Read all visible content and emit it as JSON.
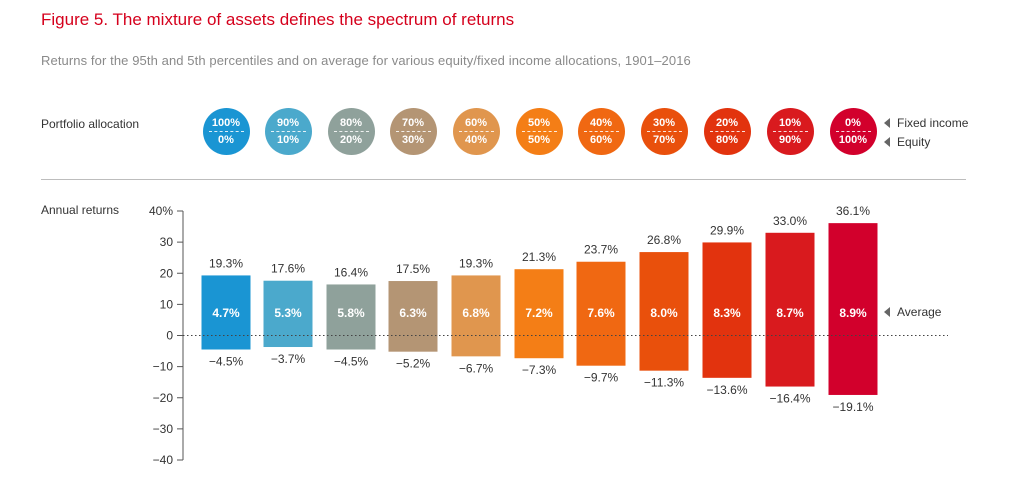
{
  "header": {
    "title": "Figure 5. The mixture of assets defines the spectrum of returns",
    "subtitle": "Returns for the 95th and 5th percentiles and on average for various equity/fixed income allocations, 1901–2016"
  },
  "allocation": {
    "label": "Portfolio allocation",
    "fixed_income_legend": "Fixed income",
    "equity_legend": "Equity",
    "portfolios": [
      {
        "fixed": "100%",
        "equity": "0%",
        "color": "#1a95d3"
      },
      {
        "fixed": "90%",
        "equity": "10%",
        "color": "#4ba9cc"
      },
      {
        "fixed": "80%",
        "equity": "20%",
        "color": "#8fa19b"
      },
      {
        "fixed": "70%",
        "equity": "30%",
        "color": "#b49574"
      },
      {
        "fixed": "60%",
        "equity": "40%",
        "color": "#e0964e"
      },
      {
        "fixed": "50%",
        "equity": "50%",
        "color": "#f47e16"
      },
      {
        "fixed": "40%",
        "equity": "60%",
        "color": "#f06812"
      },
      {
        "fixed": "30%",
        "equity": "70%",
        "color": "#e9500c"
      },
      {
        "fixed": "20%",
        "equity": "80%",
        "color": "#e2330e"
      },
      {
        "fixed": "10%",
        "equity": "90%",
        "color": "#d91a1e"
      },
      {
        "fixed": "0%",
        "equity": "100%",
        "color": "#d2002c"
      }
    ]
  },
  "chart_data": {
    "type": "bar",
    "ylabel": "Annual returns",
    "ylim": [
      -40,
      40
    ],
    "yticks": [
      40,
      30,
      20,
      10,
      0,
      -10,
      -20,
      -30,
      -40
    ],
    "ytick_labels": [
      "40%",
      "30",
      "20",
      "10",
      "0",
      "−10",
      "−20",
      "−30",
      "−40"
    ],
    "average_legend": "Average",
    "series": [
      {
        "name": "95th percentile",
        "values": [
          19.3,
          17.6,
          16.4,
          17.5,
          19.3,
          21.3,
          23.7,
          26.8,
          29.9,
          33.0,
          36.1
        ],
        "labels": [
          "19.3%",
          "17.6%",
          "16.4%",
          "17.5%",
          "19.3%",
          "21.3%",
          "23.7%",
          "26.8%",
          "29.9%",
          "33.0%",
          "36.1%"
        ]
      },
      {
        "name": "5th percentile",
        "values": [
          -4.5,
          -3.7,
          -4.5,
          -5.2,
          -6.7,
          -7.3,
          -9.7,
          -11.3,
          -13.6,
          -16.4,
          -19.1
        ],
        "labels": [
          "−4.5%",
          "−3.7%",
          "−4.5%",
          "−5.2%",
          "−6.7%",
          "−7.3%",
          "−9.7%",
          "−11.3%",
          "−13.6%",
          "−16.4%",
          "−19.1%"
        ]
      },
      {
        "name": "Average",
        "values": [
          4.7,
          5.3,
          5.8,
          6.3,
          6.8,
          7.2,
          7.6,
          8.0,
          8.3,
          8.7,
          8.9
        ],
        "labels": [
          "4.7%",
          "5.3%",
          "5.8%",
          "6.3%",
          "6.8%",
          "7.2%",
          "7.6%",
          "8.0%",
          "8.3%",
          "8.7%",
          "8.9%"
        ]
      }
    ],
    "colors": [
      "#1a95d3",
      "#4ba9cc",
      "#8fa19b",
      "#b49574",
      "#e0964e",
      "#f47e16",
      "#f06812",
      "#e9500c",
      "#e2330e",
      "#d91a1e",
      "#d2002c"
    ],
    "zero_line": "dotted"
  }
}
